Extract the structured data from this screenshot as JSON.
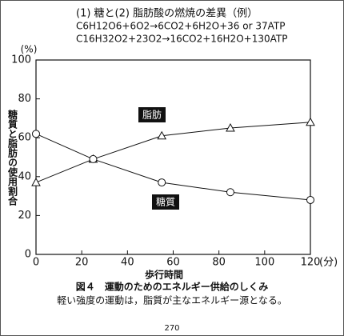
{
  "header": {
    "title": "(1) 糖と(2) 脂肪酸の燃焼の差異（例）",
    "lines": [
      "C6H12O6+6O2→6CO2+6H2O+36 or 37ATP",
      "C16H32O2+23O2→16CO2+16H2O+130ATP"
    ]
  },
  "chart_data": {
    "type": "line",
    "y_unit": "(%)",
    "y_label": "糖質と脂肪の使用割合",
    "x_label": "歩行時間",
    "x_unit": "(分)",
    "x": [
      0,
      25,
      55,
      85,
      120
    ],
    "series": [
      {
        "name": "脂肪",
        "color": "#111111",
        "marker": "triangle",
        "values": [
          37,
          49,
          61,
          65,
          68
        ]
      },
      {
        "name": "糖質",
        "color": "#111111",
        "marker": "circle",
        "values": [
          62,
          49,
          37,
          32,
          28
        ]
      }
    ],
    "xlim": [
      0,
      120
    ],
    "xticks": [
      0,
      20,
      40,
      60,
      80,
      100,
      120
    ],
    "ylim": [
      0,
      100
    ],
    "yticks": [
      0,
      20,
      40,
      60,
      80,
      100
    ],
    "grid": false
  },
  "caption": {
    "figure": "図４　運動のためのエネルギー供給のしくみ",
    "note": "軽い強度の運動は，脂質が主なエネルギー源となる。"
  },
  "page_number": "270"
}
